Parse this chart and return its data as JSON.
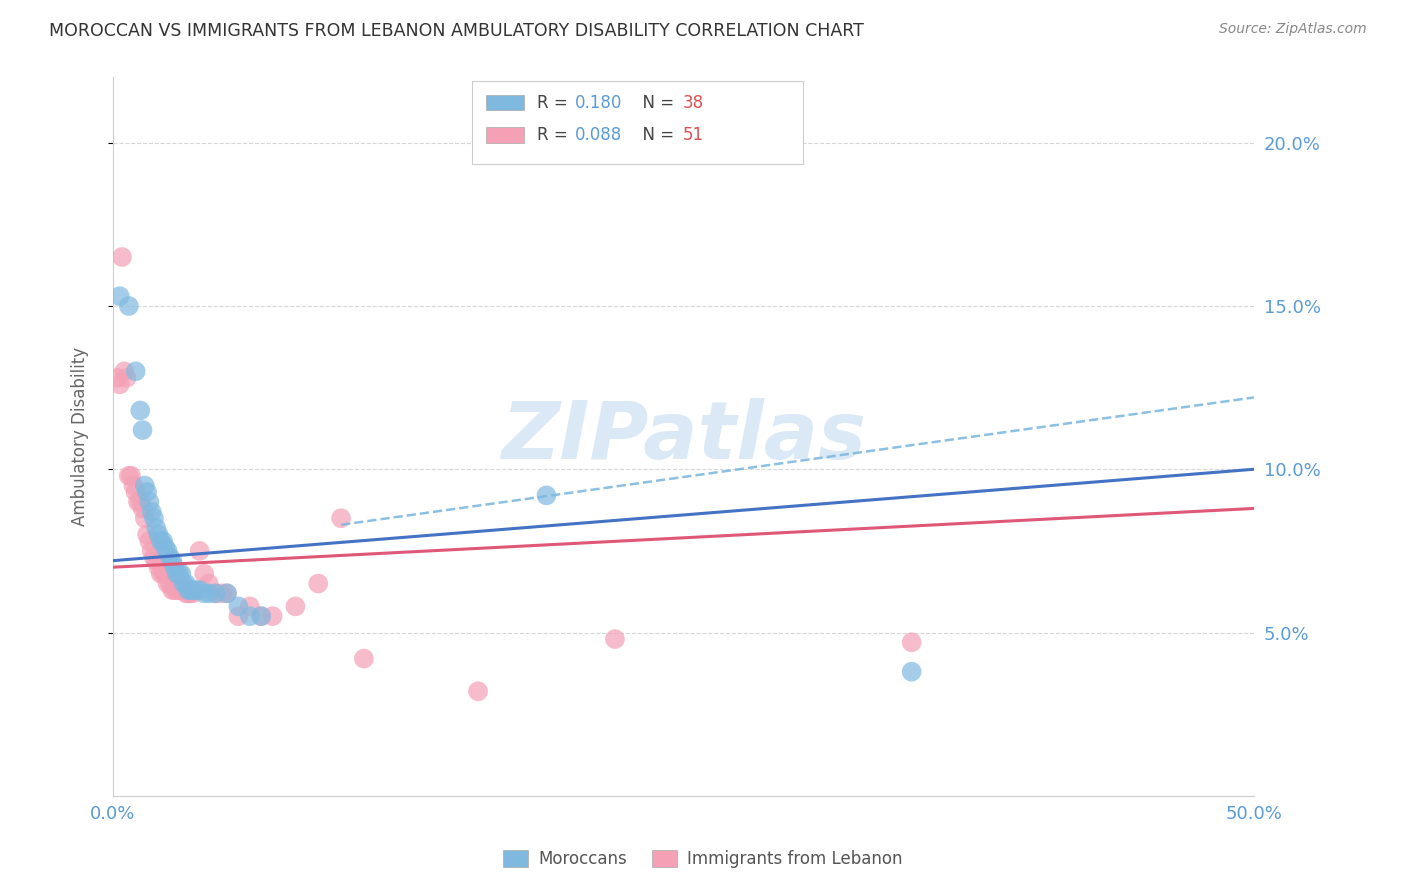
{
  "title": "MOROCCAN VS IMMIGRANTS FROM LEBANON AMBULATORY DISABILITY CORRELATION CHART",
  "source": "Source: ZipAtlas.com",
  "ylabel": "Ambulatory Disability",
  "watermark": "ZIPatlas",
  "legend_label1": "Moroccans",
  "legend_label2": "Immigrants from Lebanon",
  "R1": "0.180",
  "N1": "38",
  "R2": "0.088",
  "N2": "51",
  "xlim": [
    0.0,
    0.5
  ],
  "ylim": [
    0.0,
    0.22
  ],
  "yticks": [
    0.05,
    0.1,
    0.15,
    0.2
  ],
  "ytick_labels": [
    "5.0%",
    "10.0%",
    "15.0%",
    "20.0%"
  ],
  "xticks": [
    0.0,
    0.1,
    0.2,
    0.3,
    0.4,
    0.5
  ],
  "xtick_labels": [
    "0.0%",
    "",
    "",
    "",
    "",
    "50.0%"
  ],
  "color_blue": "#7fb9e0",
  "color_pink": "#f4a0b5",
  "line_blue": "#4472c4",
  "line_pink": "#e05878",
  "line_dash_color": "#7fb9e0",
  "bg_color": "#ffffff",
  "axis_color": "#5b9bd5",
  "grid_color": "#cccccc",
  "blue_line_x0": 0.0,
  "blue_line_y0": 0.072,
  "blue_line_x1": 0.5,
  "blue_line_y1": 0.1,
  "pink_line_x0": 0.0,
  "pink_line_y0": 0.07,
  "pink_line_x1": 0.5,
  "pink_line_y1": 0.088,
  "dash_line_x0": 0.1,
  "dash_line_y0": 0.083,
  "dash_line_x1": 0.5,
  "dash_line_y1": 0.122,
  "scatter_blue": [
    [
      0.003,
      0.153
    ],
    [
      0.007,
      0.15
    ],
    [
      0.01,
      0.13
    ],
    [
      0.012,
      0.118
    ],
    [
      0.013,
      0.112
    ],
    [
      0.014,
      0.095
    ],
    [
      0.015,
      0.093
    ],
    [
      0.016,
      0.09
    ],
    [
      0.017,
      0.087
    ],
    [
      0.018,
      0.085
    ],
    [
      0.019,
      0.082
    ],
    [
      0.02,
      0.08
    ],
    [
      0.021,
      0.078
    ],
    [
      0.022,
      0.078
    ],
    [
      0.023,
      0.076
    ],
    [
      0.024,
      0.075
    ],
    [
      0.025,
      0.073
    ],
    [
      0.026,
      0.072
    ],
    [
      0.027,
      0.07
    ],
    [
      0.028,
      0.068
    ],
    [
      0.029,
      0.068
    ],
    [
      0.03,
      0.068
    ],
    [
      0.031,
      0.065
    ],
    [
      0.032,
      0.065
    ],
    [
      0.033,
      0.063
    ],
    [
      0.034,
      0.063
    ],
    [
      0.035,
      0.063
    ],
    [
      0.036,
      0.063
    ],
    [
      0.038,
      0.063
    ],
    [
      0.04,
      0.062
    ],
    [
      0.042,
      0.062
    ],
    [
      0.045,
      0.062
    ],
    [
      0.05,
      0.062
    ],
    [
      0.055,
      0.058
    ],
    [
      0.06,
      0.055
    ],
    [
      0.065,
      0.055
    ],
    [
      0.19,
      0.092
    ],
    [
      0.35,
      0.038
    ]
  ],
  "scatter_pink": [
    [
      0.002,
      0.128
    ],
    [
      0.003,
      0.126
    ],
    [
      0.004,
      0.165
    ],
    [
      0.005,
      0.13
    ],
    [
      0.006,
      0.128
    ],
    [
      0.007,
      0.098
    ],
    [
      0.008,
      0.098
    ],
    [
      0.009,
      0.095
    ],
    [
      0.01,
      0.093
    ],
    [
      0.011,
      0.09
    ],
    [
      0.012,
      0.09
    ],
    [
      0.013,
      0.088
    ],
    [
      0.014,
      0.085
    ],
    [
      0.015,
      0.08
    ],
    [
      0.016,
      0.078
    ],
    [
      0.017,
      0.075
    ],
    [
      0.018,
      0.073
    ],
    [
      0.019,
      0.072
    ],
    [
      0.02,
      0.07
    ],
    [
      0.021,
      0.068
    ],
    [
      0.022,
      0.068
    ],
    [
      0.023,
      0.068
    ],
    [
      0.024,
      0.065
    ],
    [
      0.025,
      0.065
    ],
    [
      0.026,
      0.063
    ],
    [
      0.027,
      0.063
    ],
    [
      0.028,
      0.063
    ],
    [
      0.029,
      0.063
    ],
    [
      0.03,
      0.063
    ],
    [
      0.031,
      0.063
    ],
    [
      0.032,
      0.062
    ],
    [
      0.033,
      0.062
    ],
    [
      0.034,
      0.062
    ],
    [
      0.035,
      0.062
    ],
    [
      0.038,
      0.075
    ],
    [
      0.04,
      0.068
    ],
    [
      0.042,
      0.065
    ],
    [
      0.045,
      0.062
    ],
    [
      0.048,
      0.062
    ],
    [
      0.05,
      0.062
    ],
    [
      0.055,
      0.055
    ],
    [
      0.06,
      0.058
    ],
    [
      0.065,
      0.055
    ],
    [
      0.07,
      0.055
    ],
    [
      0.08,
      0.058
    ],
    [
      0.09,
      0.065
    ],
    [
      0.1,
      0.085
    ],
    [
      0.11,
      0.042
    ],
    [
      0.16,
      0.032
    ],
    [
      0.22,
      0.048
    ],
    [
      0.35,
      0.047
    ]
  ]
}
